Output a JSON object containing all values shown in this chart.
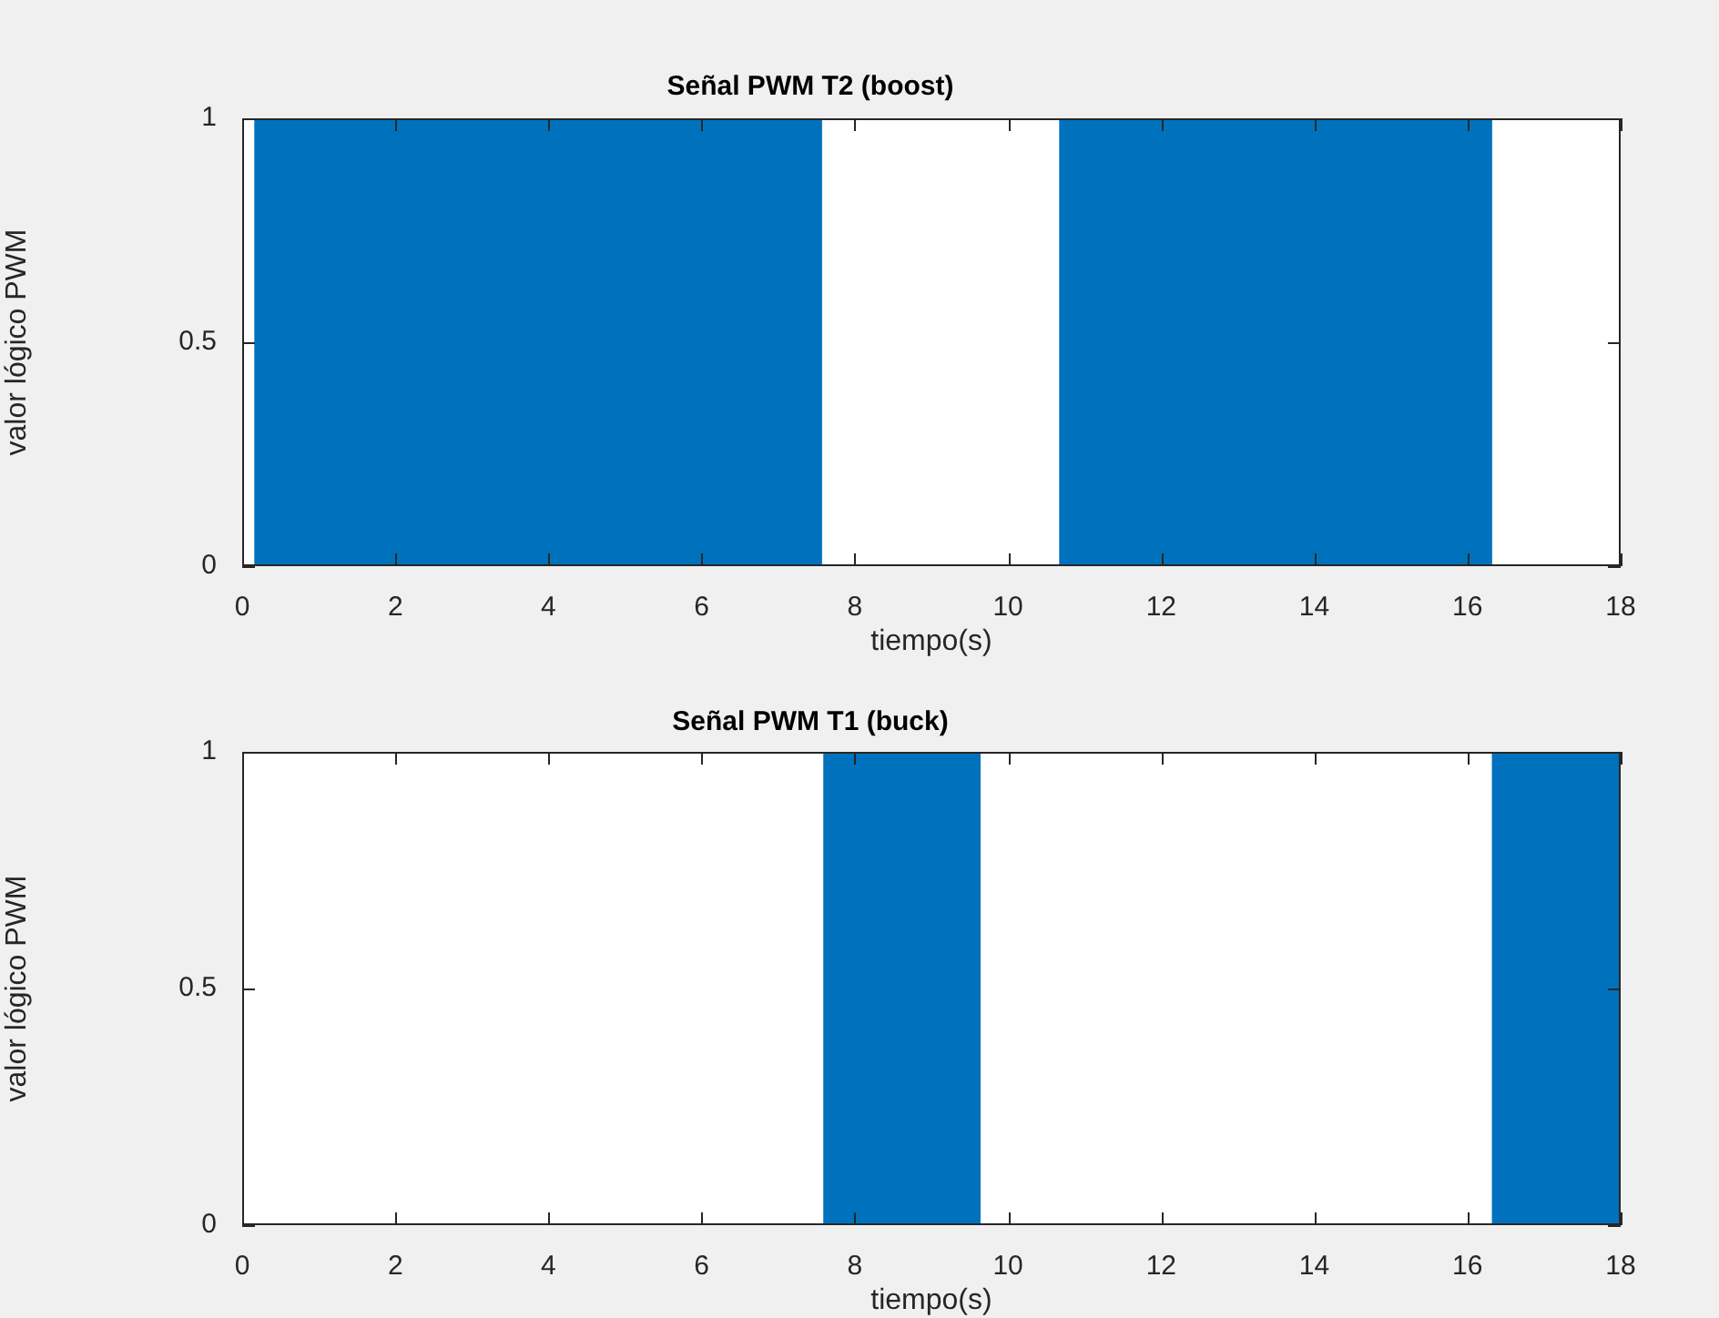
{
  "chart_data": [
    {
      "type": "area",
      "title": "Señal PWM T2 (boost)",
      "xlabel": "tiempo(s)",
      "ylabel": "valor lógico PWM",
      "xlim": [
        0,
        18
      ],
      "ylim": [
        0,
        1
      ],
      "xticks": [
        0,
        2,
        4,
        6,
        8,
        10,
        12,
        14,
        16,
        18
      ],
      "yticks": [
        0,
        0.5,
        1
      ],
      "series": [
        {
          "color": "#0072bd",
          "x": [
            0,
            0.17,
            0.17,
            7.56,
            7.56,
            10.68,
            10.68,
            16.31,
            16.31,
            18
          ],
          "values": [
            0,
            0,
            1,
            1,
            0,
            0,
            1,
            1,
            0,
            0
          ]
        }
      ]
    },
    {
      "type": "area",
      "title": "Señal PWM T1 (buck)",
      "xlabel": "tiempo(s)",
      "ylabel": "valor lógico PWM",
      "xlim": [
        0,
        18
      ],
      "ylim": [
        0,
        1
      ],
      "xticks": [
        0,
        2,
        4,
        6,
        8,
        10,
        12,
        14,
        16,
        18
      ],
      "yticks": [
        0,
        0.5,
        1
      ],
      "series": [
        {
          "color": "#0072bd",
          "x": [
            0,
            7.6,
            7.6,
            9.63,
            9.63,
            16.33,
            16.33,
            18
          ],
          "values": [
            0,
            0,
            1,
            1,
            0,
            0,
            1,
            1
          ]
        }
      ]
    }
  ]
}
